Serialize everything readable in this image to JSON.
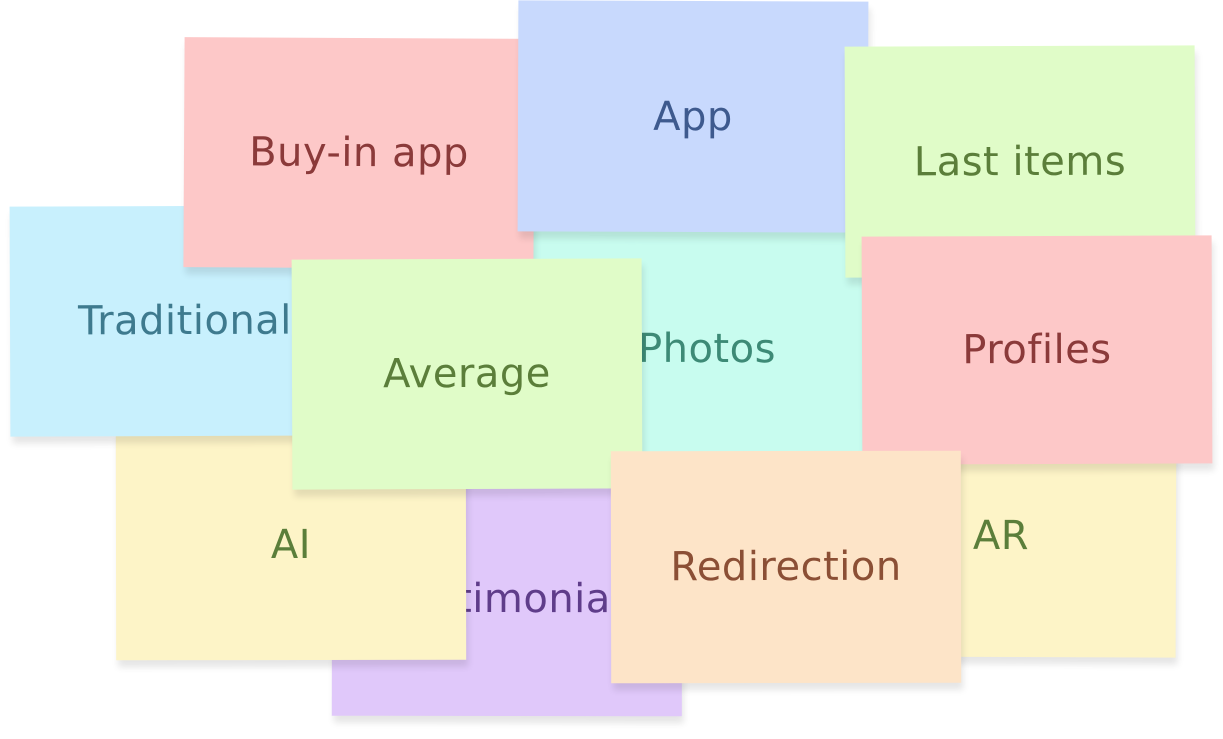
{
  "notes": [
    {
      "id": "testimonial",
      "text": "Testimonial",
      "bg": "#e0c8fa",
      "fg": "#5f3d8a"
    },
    {
      "id": "ar",
      "text": "AR",
      "bg": "#fdf4c7",
      "fg": "#5b7e3a"
    },
    {
      "id": "ai",
      "text": "AI",
      "bg": "#fdf4c7",
      "fg": "#5b7e3a"
    },
    {
      "id": "traditional",
      "text": "Traditional",
      "bg": "#c8f0fd",
      "fg": "#3e7a8e"
    },
    {
      "id": "photos",
      "text": "Photos",
      "bg": "#c8fcef",
      "fg": "#3d8a76"
    },
    {
      "id": "buy-in-app",
      "text": "Buy-in app",
      "bg": "#fdc8c8",
      "fg": "#8b3a3a"
    },
    {
      "id": "app",
      "text": "App",
      "bg": "#c8d9fd",
      "fg": "#3e5a8e"
    },
    {
      "id": "last-items",
      "text": "Last items",
      "bg": "#e0fcc8",
      "fg": "#5b7e3a"
    },
    {
      "id": "profiles",
      "text": "Profiles",
      "bg": "#fdc8c8",
      "fg": "#8b3a3a"
    },
    {
      "id": "average",
      "text": "Average",
      "bg": "#e0fcc8",
      "fg": "#5b7e3a"
    },
    {
      "id": "redirection",
      "text": "Redirection",
      "bg": "#fde4c8",
      "fg": "#8b4f35"
    }
  ]
}
